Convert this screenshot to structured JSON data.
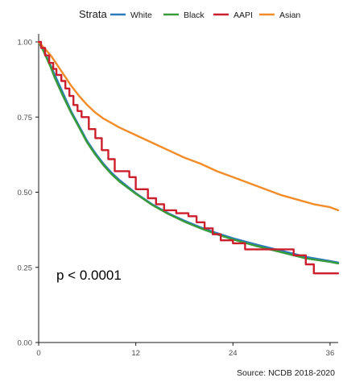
{
  "chart_data": {
    "type": "line",
    "step": true,
    "legend": {
      "title": "Strata",
      "position": "top"
    },
    "xlim": [
      0,
      37
    ],
    "ylim": [
      0,
      1
    ],
    "x_ticks": [
      0,
      12,
      24,
      36
    ],
    "y_ticks": [
      0,
      0.25,
      0.5,
      0.75,
      1
    ],
    "x_tick_labels": [
      "0",
      "12",
      "24",
      "36"
    ],
    "y_tick_labels": [
      "0.00",
      "0.25",
      "0.50",
      "0.75",
      "1.00"
    ],
    "grid": false,
    "annotation": "p < 0.0001",
    "series": [
      {
        "name": "White",
        "color": "#2b7bba",
        "x": [
          0,
          0.5,
          1,
          1.5,
          2,
          2.5,
          3,
          4,
          5,
          6,
          7,
          8,
          9,
          10,
          12,
          14,
          16,
          18,
          20,
          22,
          24,
          27,
          30,
          33,
          36,
          37
        ],
        "y": [
          1.0,
          0.98,
          0.95,
          0.92,
          0.89,
          0.86,
          0.83,
          0.77,
          0.72,
          0.67,
          0.63,
          0.595,
          0.565,
          0.54,
          0.497,
          0.46,
          0.43,
          0.405,
          0.383,
          0.364,
          0.347,
          0.325,
          0.305,
          0.285,
          0.271,
          0.266
        ]
      },
      {
        "name": "Black",
        "color": "#3a9b3a",
        "x": [
          0,
          0.5,
          1,
          1.5,
          2,
          2.5,
          3,
          4,
          5,
          6,
          7,
          8,
          9,
          10,
          12,
          14,
          16,
          18,
          20,
          22,
          24,
          27,
          30,
          33,
          36,
          37
        ],
        "y": [
          1.0,
          0.975,
          0.945,
          0.915,
          0.88,
          0.85,
          0.82,
          0.765,
          0.715,
          0.665,
          0.625,
          0.59,
          0.56,
          0.535,
          0.495,
          0.458,
          0.428,
          0.402,
          0.38,
          0.36,
          0.343,
          0.32,
          0.3,
          0.28,
          0.268,
          0.263
        ]
      },
      {
        "name": "AAPI",
        "color": "#cc1f2e",
        "x": [
          0,
          0.3,
          0.8,
          1.3,
          1.8,
          2.2,
          2.8,
          3.3,
          3.8,
          4.3,
          4.8,
          5.3,
          6.2,
          7.0,
          7.8,
          8.6,
          9.4,
          10.5,
          11.2,
          12.0,
          13.5,
          14.5,
          15.5,
          17.0,
          18.5,
          19.5,
          20.5,
          21.5,
          22.5,
          24.0,
          25.5,
          27.0,
          28.5,
          30.0,
          31.5,
          33.0,
          34.0,
          35.0,
          37.0
        ],
        "y": [
          1.0,
          0.98,
          0.955,
          0.93,
          0.91,
          0.89,
          0.87,
          0.845,
          0.82,
          0.79,
          0.77,
          0.75,
          0.71,
          0.68,
          0.64,
          0.61,
          0.57,
          0.57,
          0.55,
          0.51,
          0.48,
          0.46,
          0.44,
          0.43,
          0.42,
          0.4,
          0.38,
          0.36,
          0.34,
          0.33,
          0.31,
          0.31,
          0.31,
          0.31,
          0.29,
          0.26,
          0.23,
          0.23,
          0.23
        ]
      },
      {
        "name": "Asian",
        "color": "#f28c28",
        "x": [
          0,
          0.5,
          1,
          1.5,
          2,
          3,
          4,
          5,
          6,
          7,
          8,
          9,
          10,
          12,
          14,
          16,
          18,
          20,
          22,
          24,
          26,
          28,
          30,
          32,
          34,
          36,
          37
        ],
        "y": [
          1.0,
          0.985,
          0.97,
          0.955,
          0.935,
          0.895,
          0.855,
          0.82,
          0.79,
          0.765,
          0.745,
          0.73,
          0.715,
          0.69,
          0.665,
          0.64,
          0.615,
          0.595,
          0.57,
          0.55,
          0.53,
          0.51,
          0.49,
          0.475,
          0.46,
          0.45,
          0.44
        ]
      }
    ]
  },
  "footer": {
    "source": "Source: NCDB 2018-2020"
  }
}
